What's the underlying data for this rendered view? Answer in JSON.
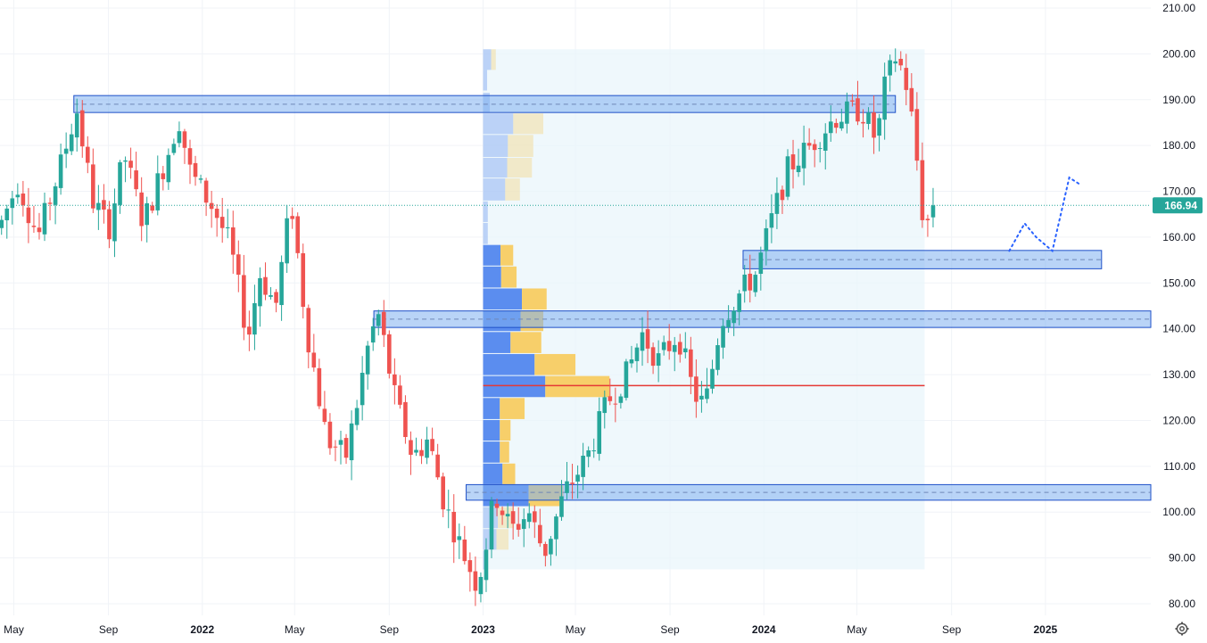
{
  "chart_data": {
    "type": "candlestick",
    "timeframe": "weekly",
    "colors": {
      "up": "#26a69a",
      "down": "#ef5350",
      "zone_fill": "#7fb0f0",
      "zone_border": "#1e50c8",
      "vp_up": "#5b8def",
      "vp_down": "#f7cf6a",
      "poc": "#e53935",
      "price_line": "#26a69a",
      "forecast": "#2962ff"
    },
    "y_axis": {
      "min": 80,
      "max": 210,
      "ticks": [
        "210.00",
        "200.00",
        "190.00",
        "180.00",
        "170.00",
        "160.00",
        "150.00",
        "140.00",
        "130.00",
        "120.00",
        "110.00",
        "100.00",
        "90.00",
        "80.00"
      ]
    },
    "x_axis": {
      "range": [
        "2021-04-13",
        "2025-05-18"
      ],
      "ticks": [
        {
          "label": "May",
          "date": "2021-05-01"
        },
        {
          "label": "Sep",
          "date": "2021-09-01"
        },
        {
          "label": "2022",
          "date": "2022-01-01"
        },
        {
          "label": "May",
          "date": "2022-05-01"
        },
        {
          "label": "Sep",
          "date": "2022-09-01"
        },
        {
          "label": "2023",
          "date": "2023-01-01"
        },
        {
          "label": "May",
          "date": "2023-05-01"
        },
        {
          "label": "Sep",
          "date": "2023-09-01"
        },
        {
          "label": "2024",
          "date": "2024-01-01"
        },
        {
          "label": "May",
          "date": "2024-05-01"
        },
        {
          "label": "Sep",
          "date": "2024-09-01"
        },
        {
          "label": "2025",
          "date": "2025-01-01"
        }
      ]
    },
    "last_price": "166.94",
    "last_price_value": 166.94,
    "price_path": [
      [
        "2021-04-15",
        162
      ],
      [
        "2021-05-10",
        172
      ],
      [
        "2021-06-05",
        160
      ],
      [
        "2021-07-05",
        176
      ],
      [
        "2021-07-25",
        188
      ],
      [
        "2021-08-15",
        168
      ],
      [
        "2021-09-05",
        162
      ],
      [
        "2021-09-25",
        178
      ],
      [
        "2021-10-20",
        163
      ],
      [
        "2021-11-20",
        178
      ],
      [
        "2021-12-05",
        186
      ],
      [
        "2021-12-20",
        174
      ],
      [
        "2022-01-20",
        166
      ],
      [
        "2022-02-10",
        158
      ],
      [
        "2022-03-05",
        138
      ],
      [
        "2022-03-20",
        152
      ],
      [
        "2022-04-10",
        145
      ],
      [
        "2022-04-30",
        168
      ],
      [
        "2022-05-20",
        140
      ],
      [
        "2022-06-15",
        116
      ],
      [
        "2022-07-10",
        112
      ],
      [
        "2022-07-25",
        124
      ],
      [
        "2022-08-10",
        138
      ],
      [
        "2022-08-22",
        143
      ],
      [
        "2022-09-10",
        126
      ],
      [
        "2022-10-05",
        112
      ],
      [
        "2022-10-25",
        116
      ],
      [
        "2022-11-15",
        102
      ],
      [
        "2022-12-05",
        93
      ],
      [
        "2022-12-28",
        84
      ],
      [
        "2023-01-05",
        90
      ],
      [
        "2023-01-20",
        104
      ],
      [
        "2023-02-10",
        96
      ],
      [
        "2023-03-05",
        100
      ],
      [
        "2023-03-25",
        91
      ],
      [
        "2023-04-20",
        104
      ],
      [
        "2023-05-20",
        112
      ],
      [
        "2023-06-15",
        124
      ],
      [
        "2023-07-10",
        130
      ],
      [
        "2023-07-30",
        139
      ],
      [
        "2023-08-20",
        133
      ],
      [
        "2023-09-15",
        139
      ],
      [
        "2023-10-05",
        126
      ],
      [
        "2023-10-20",
        123
      ],
      [
        "2023-11-10",
        142
      ],
      [
        "2023-12-05",
        148
      ],
      [
        "2023-12-25",
        152
      ],
      [
        "2024-01-15",
        164
      ],
      [
        "2024-02-05",
        175
      ],
      [
        "2024-03-05",
        180
      ],
      [
        "2024-04-05",
        186
      ],
      [
        "2024-05-10",
        188
      ],
      [
        "2024-05-30",
        181
      ],
      [
        "2024-06-10",
        193
      ],
      [
        "2024-06-25",
        200
      ],
      [
        "2024-07-10",
        192
      ],
      [
        "2024-07-22",
        176
      ],
      [
        "2024-08-01",
        160
      ],
      [
        "2024-08-08",
        166.94
      ]
    ],
    "zones": [
      {
        "start": "2021-07-18",
        "end": "2024-06-20",
        "top": 190.9,
        "bottom": 187.2,
        "mid": 189.0
      },
      {
        "start": "2022-08-12",
        "end": "2025-05-18",
        "top": 143.9,
        "bottom": 140.3,
        "mid": 142.1
      },
      {
        "start": "2023-12-05",
        "end": "2025-03-15",
        "top": 157.1,
        "bottom": 153.1,
        "mid": 155.1
      },
      {
        "start": "2022-12-10",
        "end": "2025-05-18",
        "top": 106.0,
        "bottom": 102.6,
        "mid": 104.3
      }
    ],
    "volume_profile": {
      "start": "2023-01-01",
      "end": "2024-07-28",
      "top": 201,
      "bottom": 87.5,
      "poc_price": 127.6,
      "rows": [
        {
          "lo": 196.5,
          "hi": 201.0,
          "up": 0.12,
          "down": 0.07,
          "faded": true
        },
        {
          "lo": 192.0,
          "hi": 196.5,
          "up": 0.06,
          "down": 0.0,
          "faded": true
        },
        {
          "lo": 187.2,
          "hi": 191.5,
          "up": 0.1,
          "down": 0.0,
          "faded": true
        },
        {
          "lo": 182.5,
          "hi": 187.0,
          "up": 0.45,
          "down": 0.45,
          "faded": true
        },
        {
          "lo": 177.5,
          "hi": 182.3,
          "up": 0.37,
          "down": 0.38,
          "faded": true
        },
        {
          "lo": 173.0,
          "hi": 177.3,
          "up": 0.36,
          "down": 0.37,
          "faded": true
        },
        {
          "lo": 168.0,
          "hi": 172.8,
          "up": 0.33,
          "down": 0.22,
          "faded": true
        },
        {
          "lo": 163.3,
          "hi": 167.8,
          "up": 0.07,
          "down": 0.0,
          "faded": true
        },
        {
          "lo": 158.5,
          "hi": 163.1,
          "up": 0.07,
          "down": 0.0,
          "faded": true
        },
        {
          "lo": 153.8,
          "hi": 158.3,
          "up": 0.26,
          "down": 0.19,
          "faded": false
        },
        {
          "lo": 149.0,
          "hi": 153.6,
          "up": 0.27,
          "down": 0.23,
          "faded": false
        },
        {
          "lo": 144.2,
          "hi": 148.8,
          "up": 0.58,
          "down": 0.37,
          "faded": false
        },
        {
          "lo": 139.5,
          "hi": 144.0,
          "up": 0.56,
          "down": 0.34,
          "faded": false
        },
        {
          "lo": 134.7,
          "hi": 139.3,
          "up": 0.41,
          "down": 0.46,
          "faded": false
        },
        {
          "lo": 129.9,
          "hi": 134.5,
          "up": 0.77,
          "down": 0.61,
          "faded": false
        },
        {
          "lo": 125.1,
          "hi": 129.7,
          "up": 0.93,
          "down": 0.96,
          "faded": false
        },
        {
          "lo": 120.3,
          "hi": 124.9,
          "up": 0.25,
          "down": 0.37,
          "faded": false
        },
        {
          "lo": 115.6,
          "hi": 120.1,
          "up": 0.25,
          "down": 0.16,
          "faded": false
        },
        {
          "lo": 110.8,
          "hi": 115.4,
          "up": 0.25,
          "down": 0.14,
          "faded": false
        },
        {
          "lo": 106.1,
          "hi": 110.6,
          "up": 0.29,
          "down": 0.19,
          "faded": false
        },
        {
          "lo": 101.3,
          "hi": 105.9,
          "up": 0.68,
          "down": 0.52,
          "faded": false
        },
        {
          "lo": 96.5,
          "hi": 101.1,
          "up": 0.22,
          "down": 0.24,
          "faded": true
        },
        {
          "lo": 91.8,
          "hi": 96.3,
          "up": 0.2,
          "down": 0.18,
          "faded": true
        },
        {
          "lo": 87.5,
          "hi": 91.6,
          "up": 0.06,
          "down": 0.0,
          "faded": true
        }
      ]
    },
    "forecast_path": [
      [
        "2024-11-15",
        157
      ],
      [
        "2024-12-05",
        163
      ],
      [
        "2024-12-20",
        160
      ],
      [
        "2025-01-10",
        157
      ],
      [
        "2025-02-01",
        173
      ],
      [
        "2025-02-15",
        171.5
      ]
    ]
  },
  "icons": {
    "settings": "gear-icon"
  }
}
